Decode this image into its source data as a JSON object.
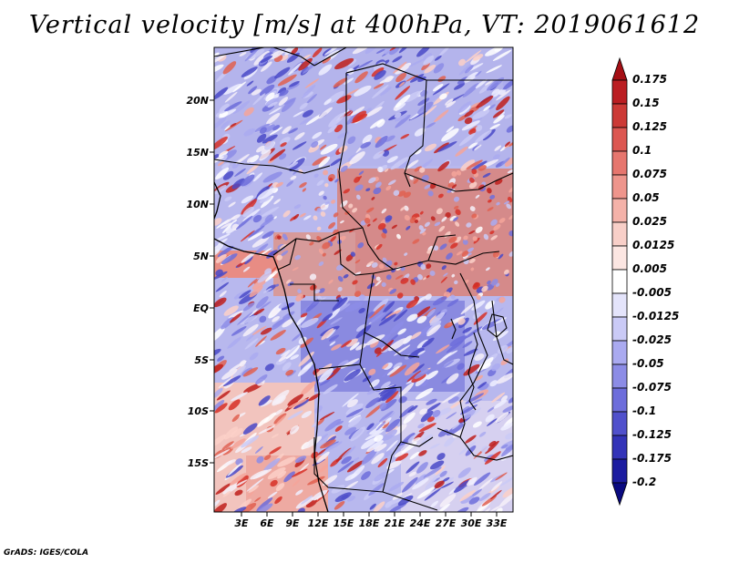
{
  "title": "Vertical velocity [m/s] at 400hPa, VT: 2019061612",
  "footer": "GrADS: IGES/COLA",
  "map": {
    "projection": "lat-lon",
    "lat_range_deg": [
      -20,
      24
    ],
    "lon_range_deg": [
      0,
      35
    ],
    "lat_labels": [
      "20N",
      "15N",
      "10N",
      "5N",
      "EQ",
      "5S",
      "10S",
      "15S"
    ],
    "lon_labels": [
      "3E",
      "6E",
      "9E",
      "12E",
      "15E",
      "18E",
      "21E",
      "24E",
      "27E",
      "30E",
      "33E"
    ],
    "field": "vertical velocity at 400hPa",
    "units": "m/s"
  },
  "colorbar": {
    "levels": [
      "0.175",
      "0.15",
      "0.125",
      "0.1",
      "0.075",
      "0.05",
      "0.025",
      "0.0125",
      "0.005",
      "-0.005",
      "-0.0125",
      "-0.025",
      "-0.05",
      "-0.075",
      "-0.1",
      "-0.125",
      "-0.175",
      "-0.2"
    ],
    "colors": [
      "#a50f15",
      "#bb1e22",
      "#cc3a36",
      "#dc5751",
      "#e6766e",
      "#ee958c",
      "#f4b2a9",
      "#f8cfc8",
      "#fce6e2",
      "#ffffff",
      "#e4e4fb",
      "#cacaf6",
      "#aaaaf0",
      "#8c8ce6",
      "#6d6ddb",
      "#5050cc",
      "#3333b8",
      "#1c1ca0",
      "#0a0a80"
    ]
  }
}
